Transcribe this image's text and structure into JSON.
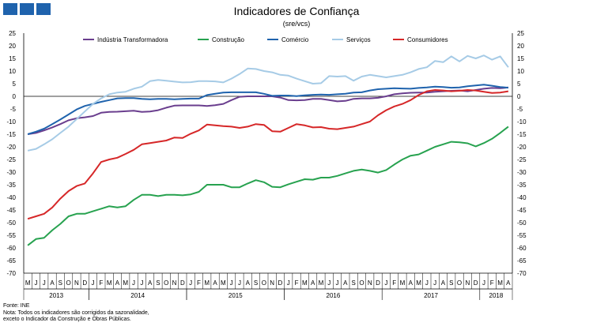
{
  "header": {
    "title": "Indicadores de Confiança",
    "subtitle": "(sre/vcs)"
  },
  "footer": {
    "source": "Fonte: INE",
    "note_1": "Nota: Todos os indicadores são corrigidos da sazonalidade,",
    "note_2": "exceto o Indicador da Construção e Obras Públicas."
  },
  "logo": {
    "icon": "ine-logo-icon",
    "color": "#1f63ad"
  },
  "chart_data": {
    "type": "line",
    "title": "Indicadores de Confiança",
    "subtitle": "(sre/vcs)",
    "ylim": [
      -70,
      25
    ],
    "yticks": [
      25,
      20,
      15,
      10,
      5,
      0,
      -5,
      -10,
      -15,
      -20,
      -25,
      -30,
      -35,
      -40,
      -45,
      -50,
      -55,
      -60,
      -65,
      -70
    ],
    "grid": false,
    "legend_position": "top",
    "month_labels": [
      "M",
      "J",
      "J",
      "A",
      "S",
      "O",
      "N",
      "D",
      "J",
      "F",
      "M",
      "A",
      "M",
      "J",
      "J",
      "A",
      "S",
      "O",
      "N",
      "D",
      "J",
      "F",
      "M",
      "A",
      "M",
      "J",
      "J",
      "A",
      "S",
      "O",
      "N",
      "D",
      "J",
      "F",
      "M",
      "A",
      "M",
      "J",
      "J",
      "A",
      "S",
      "O",
      "N",
      "D",
      "J",
      "F",
      "M",
      "A",
      "M",
      "J",
      "J",
      "A",
      "S",
      "O",
      "N",
      "D",
      "J",
      "F",
      "M",
      "A"
    ],
    "year_groups": [
      {
        "label": "2013",
        "start": 0,
        "count": 8
      },
      {
        "label": "2014",
        "start": 8,
        "count": 12
      },
      {
        "label": "2015",
        "start": 20,
        "count": 12
      },
      {
        "label": "2016",
        "start": 32,
        "count": 12
      },
      {
        "label": "2017",
        "start": 44,
        "count": 12
      },
      {
        "label": "2018",
        "start": 56,
        "count": 4
      }
    ],
    "series": [
      {
        "name": "Indústria Transformadora",
        "color": "#6a3e8e",
        "values": [
          -15,
          -14.5,
          -13.5,
          -12.3,
          -11,
          -9.5,
          -8.7,
          -8.3,
          -7.8,
          -6.5,
          -6.2,
          -6.1,
          -5.9,
          -5.7,
          -6.2,
          -6,
          -5.5,
          -4.5,
          -3.7,
          -3.6,
          -3.6,
          -3.6,
          -3.8,
          -3.5,
          -3,
          -1.5,
          -0.2,
          0,
          0,
          0,
          0,
          -0.5,
          -1.5,
          -1.6,
          -1.5,
          -1,
          -1,
          -1.5,
          -2,
          -1.8,
          -1,
          -0.8,
          -0.8,
          -0.6,
          0,
          0.8,
          1.2,
          1.4,
          1.5,
          1.5,
          1.8,
          2,
          2.2,
          2.3,
          2,
          2.5,
          3,
          3.3,
          3.2,
          3.5
        ]
      },
      {
        "name": "Construção",
        "color": "#27a24f",
        "values": [
          -59,
          -56.5,
          -56,
          -53,
          -50.5,
          -47.5,
          -46.5,
          -46.5,
          -45.5,
          -44.5,
          -43.5,
          -44,
          -43.5,
          -41,
          -39,
          -39,
          -39.5,
          -39,
          -39,
          -39.2,
          -38.8,
          -37.8,
          -35,
          -35,
          -35,
          -36,
          -36,
          -34.5,
          -33.2,
          -34,
          -35.8,
          -36,
          -34.8,
          -33.8,
          -32.8,
          -33,
          -32.2,
          -32.2,
          -31.5,
          -30.5,
          -29.5,
          -29,
          -29.5,
          -30.2,
          -29.2,
          -27,
          -25,
          -23.5,
          -23,
          -21.5,
          -20,
          -19,
          -18,
          -18.2,
          -18.6,
          -19.8,
          -18.5,
          -16.8,
          -14.5,
          -12
        ]
      },
      {
        "name": "Comércio",
        "color": "#1f63ad",
        "values": [
          -15,
          -14,
          -12.8,
          -11,
          -9.2,
          -7.2,
          -5.2,
          -3.8,
          -3,
          -2.2,
          -1.5,
          -0.8,
          -0.7,
          -0.7,
          -1,
          -1.2,
          -1,
          -1,
          -1.2,
          -1,
          -0.9,
          -0.9,
          0.5,
          1,
          1.5,
          1.6,
          1.6,
          1.6,
          1.6,
          1,
          0.2,
          0.3,
          0.3,
          0.1,
          0.4,
          0.6,
          0.7,
          0.6,
          0.8,
          1,
          1.5,
          1.6,
          2.3,
          2.8,
          3,
          3.2,
          3.1,
          3,
          3.3,
          3.5,
          3.8,
          3.7,
          3.4,
          3.5,
          4,
          4.3,
          4.6,
          4.2,
          3.7,
          3.4
        ]
      },
      {
        "name": "Serviços",
        "color": "#a6cbe6",
        "values": [
          -21.5,
          -20.8,
          -19,
          -17,
          -14.5,
          -12,
          -9,
          -6,
          -3,
          -0.8,
          0.8,
          1.5,
          1.8,
          3,
          3.8,
          6,
          6.5,
          6.2,
          5.8,
          5.5,
          5.6,
          6,
          6,
          5.9,
          5.5,
          7,
          8.8,
          11,
          10.8,
          10,
          9.5,
          8.5,
          8.2,
          7,
          6,
          5,
          5.2,
          8,
          7.8,
          8,
          6.2,
          7.8,
          8.5,
          8,
          7.5,
          8,
          8.5,
          9.5,
          10.8,
          11.5,
          14,
          13.5,
          15.8,
          13.8,
          16,
          15,
          16.2,
          14.5,
          15.8,
          11.5
        ]
      },
      {
        "name": "Consumidores",
        "color": "#d62728",
        "values": [
          -48.5,
          -47.5,
          -46.5,
          -44,
          -40.5,
          -37.5,
          -35.5,
          -34.5,
          -30.5,
          -26,
          -25,
          -24.3,
          -22.8,
          -21.2,
          -19,
          -18.5,
          -18,
          -17.5,
          -16.3,
          -16.5,
          -14.8,
          -13.5,
          -11.2,
          -11.5,
          -11.8,
          -12,
          -12.5,
          -12,
          -11,
          -11.3,
          -13.8,
          -14,
          -12.5,
          -11,
          -11.5,
          -12.3,
          -12.2,
          -12.8,
          -13,
          -12.5,
          -12,
          -11,
          -10,
          -7.5,
          -5.5,
          -4,
          -3,
          -1.5,
          0.5,
          2,
          2.5,
          2.3,
          2,
          2.2,
          2.5,
          2.3,
          1.8,
          1.3,
          1.5,
          2
        ]
      }
    ]
  }
}
